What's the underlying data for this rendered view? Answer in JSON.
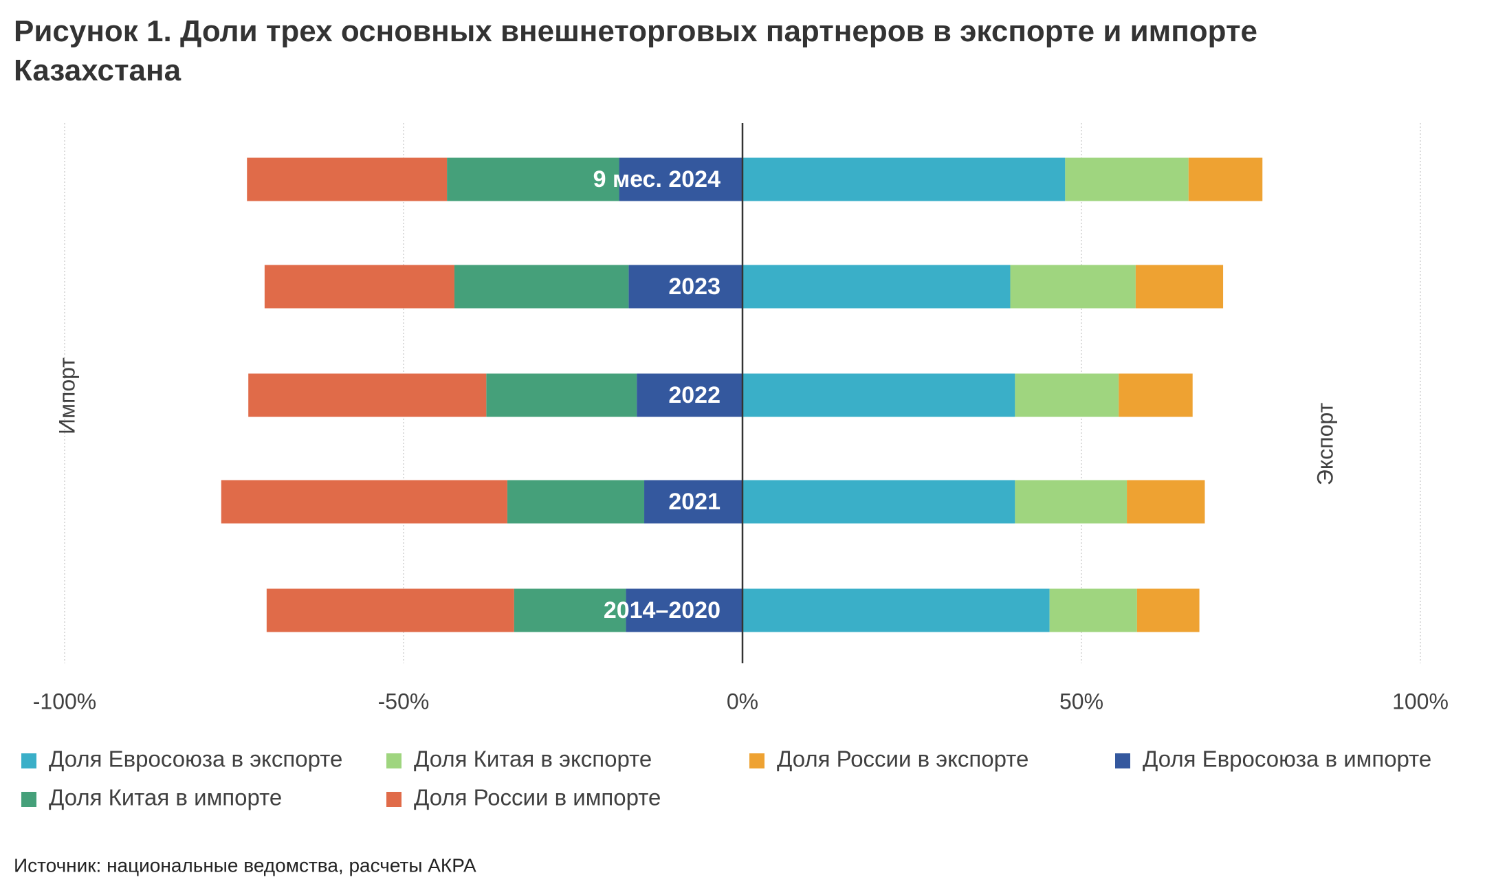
{
  "chart_data": {
    "type": "diverging_bar",
    "title": "Рисунок 1. Доли трех основных внешнеторговых партнеров в экспорте и импорте Казахстана",
    "categories": [
      "9 мес. 2024",
      "2023",
      "2022",
      "2021",
      "2014–2020"
    ],
    "series": [
      {
        "name": "Доля Евросоюза в экспорте",
        "color": "#3aafc8",
        "values": [
          47.6,
          39.5,
          40.2,
          40.2,
          45.3
        ]
      },
      {
        "name": "Доля Китая в экспорте",
        "color": "#9fd57f",
        "values": [
          18.2,
          18.5,
          15.3,
          16.5,
          12.9
        ]
      },
      {
        "name": "Доля России в экспорте",
        "color": "#eea232",
        "values": [
          10.9,
          12.9,
          10.9,
          11.5,
          9.2
        ]
      },
      {
        "name": "Доля Евросоюза в импорте",
        "color": "#34589e",
        "values": [
          -18.2,
          -16.8,
          -15.6,
          -14.5,
          -17.2
        ]
      },
      {
        "name": "Доля Китая в импорте",
        "color": "#45a07a",
        "values": [
          -25.4,
          -25.7,
          -22.2,
          -20.2,
          -16.5
        ]
      },
      {
        "name": "Доля России в импорте",
        "color": "#e06b49",
        "values": [
          -29.5,
          -28.0,
          -35.1,
          -42.2,
          -36.5
        ]
      }
    ],
    "xlim": [
      -100,
      100
    ],
    "xticks": [
      {
        "value": -100,
        "label": "-100%"
      },
      {
        "value": -50,
        "label": "-50%"
      },
      {
        "value": 0,
        "label": "0%"
      },
      {
        "value": 50,
        "label": "50%"
      },
      {
        "value": 100,
        "label": "100%"
      }
    ],
    "left_label": "Импорт",
    "right_label": "Экспорт",
    "grid": true,
    "source": "Источник: национальные ведомства, расчеты АКРА"
  }
}
